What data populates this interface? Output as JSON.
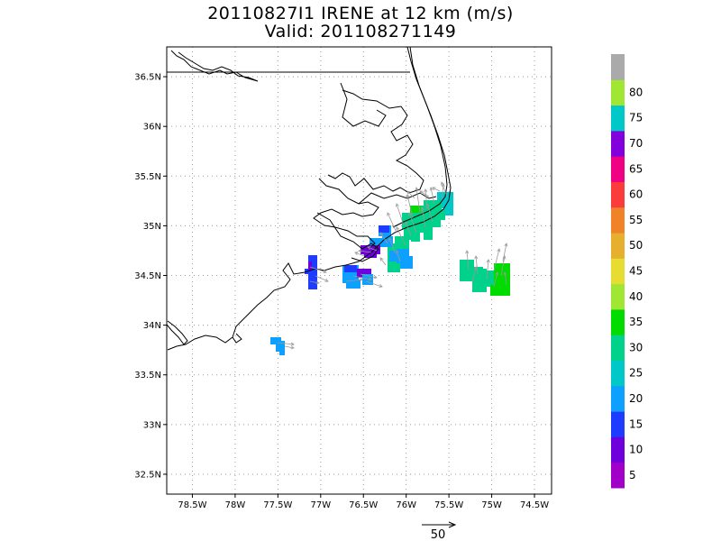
{
  "title": {
    "line1": "20110827I1 IRENE at 12 km (m/s)",
    "line2": "Valid: 201108271149"
  },
  "map": {
    "lat_labels": [
      "36.5N",
      "36N",
      "35.5N",
      "35N",
      "34.5N",
      "34N",
      "33.5N",
      "33N",
      "32.5N"
    ],
    "lon_labels": [
      "78.5W",
      "78W",
      "77.5W",
      "77W",
      "76.5W",
      "76W",
      "75.5W",
      "75W",
      "74.5W"
    ],
    "lat_values": [
      36.5,
      36,
      35.5,
      35,
      34.5,
      34,
      33.5,
      33,
      32.5
    ],
    "lon_values": [
      -78.5,
      -78,
      -77.5,
      -77,
      -76.5,
      -76,
      -75.5,
      -75,
      -74.5
    ],
    "coastline_color": "#000000",
    "grid_color": "#9a9a9a",
    "wind_vector_color": "#999999"
  },
  "colorbar": {
    "labels": [
      "5",
      "10",
      "15",
      "20",
      "25",
      "30",
      "35",
      "40",
      "45",
      "50",
      "55",
      "60",
      "65",
      "70",
      "75",
      "80"
    ],
    "colors": [
      "#a000c8",
      "#6e00dc",
      "#1e3cff",
      "#0ea0ff",
      "#00c8c8",
      "#00d28c",
      "#00dc00",
      "#a0e632",
      "#e6dc32",
      "#e6af2d",
      "#f08228",
      "#fa3c3c",
      "#f00082",
      "#8200dc",
      "#00c8c8",
      "#a0e632",
      "#aaaaaa"
    ]
  },
  "reference_vector": {
    "label": "50"
  }
}
